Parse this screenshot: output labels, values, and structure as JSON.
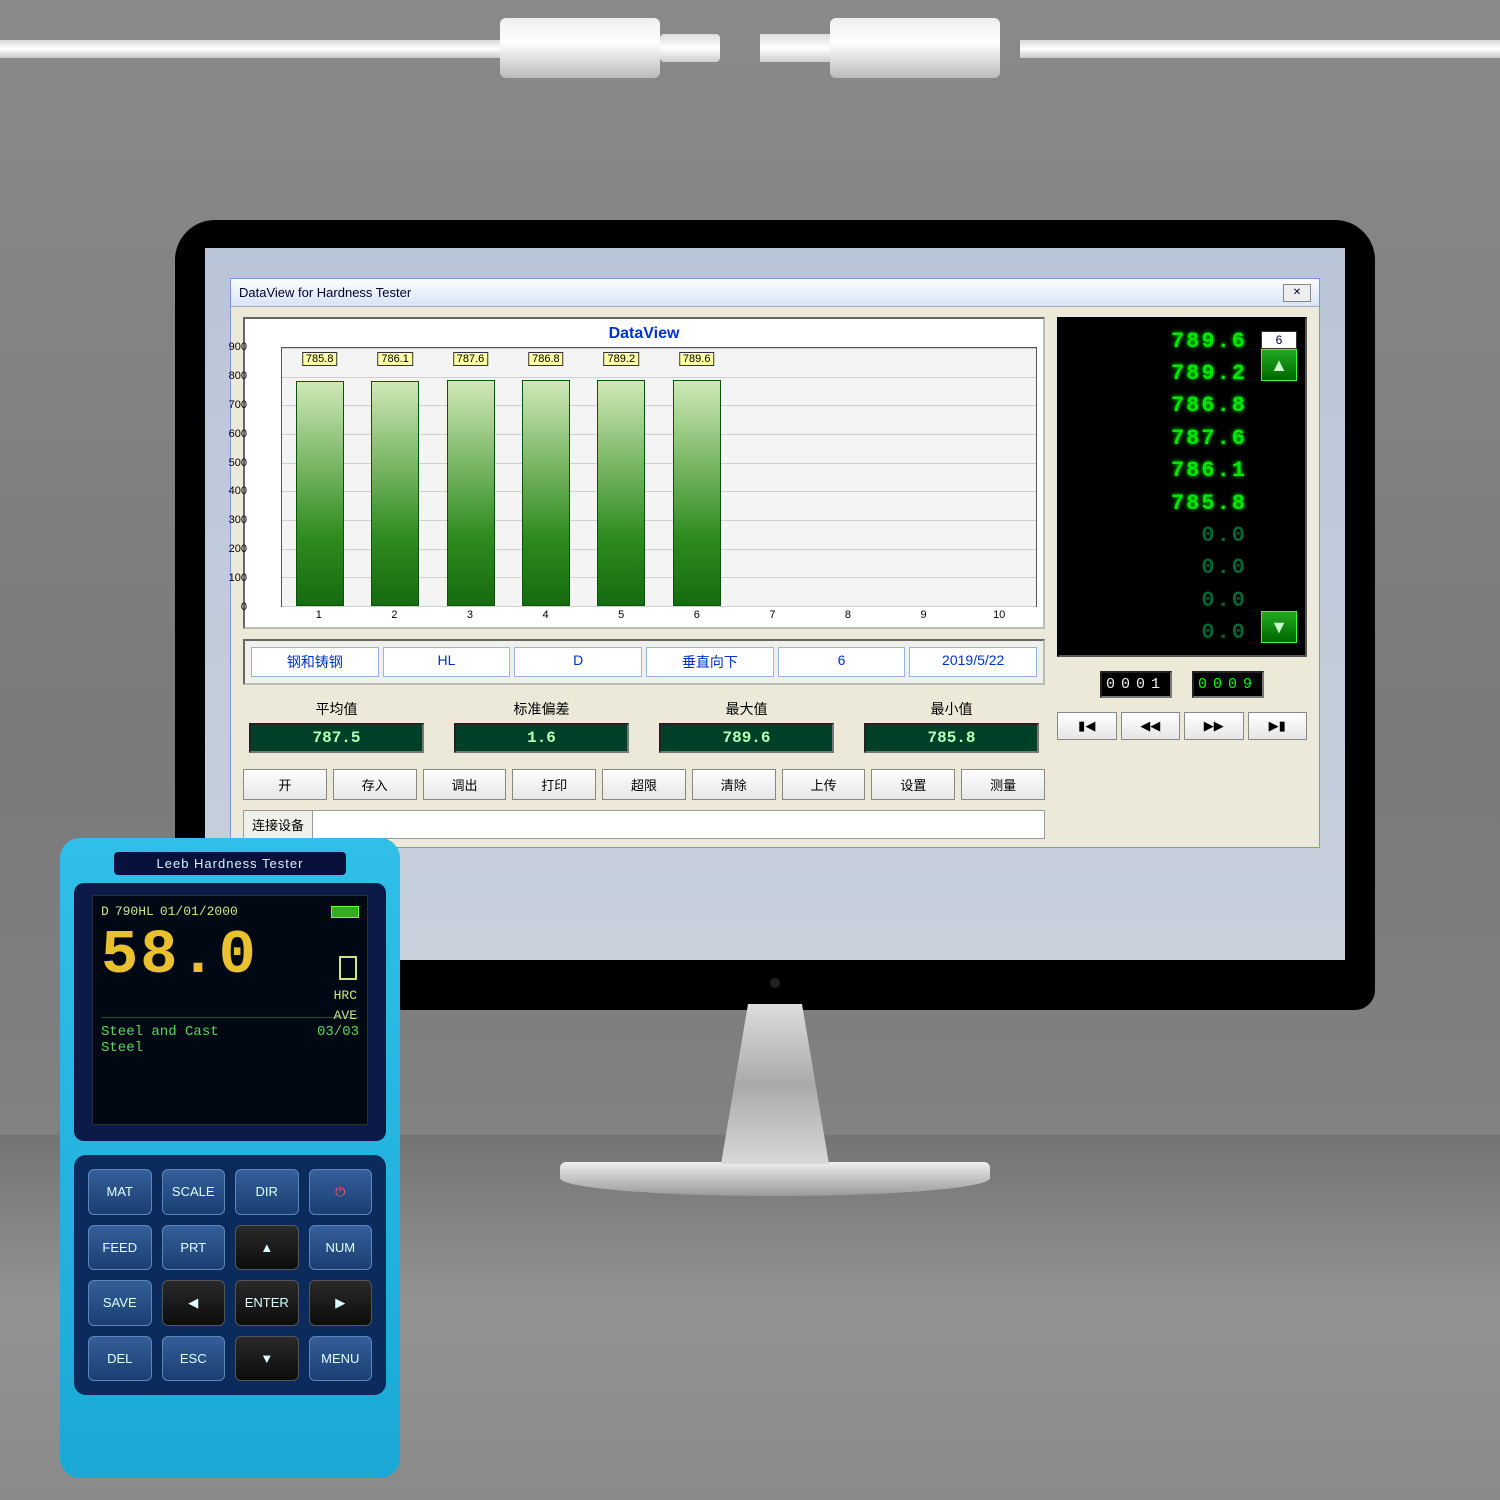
{
  "window": {
    "title": "DataView for Hardness Tester",
    "close_glyph": "✕"
  },
  "chart": {
    "type": "bar",
    "title": "DataView",
    "title_color": "#0033cc",
    "ylim": [
      0,
      900
    ],
    "yticks": [
      0,
      100,
      200,
      300,
      400,
      500,
      600,
      700,
      800,
      900
    ],
    "x_count": 10,
    "bars": [
      {
        "x": 1,
        "value": 785.8,
        "label": "785.8"
      },
      {
        "x": 2,
        "value": 786.1,
        "label": "786.1"
      },
      {
        "x": 3,
        "value": 787.6,
        "label": "787.6"
      },
      {
        "x": 4,
        "value": 786.8,
        "label": "786.8"
      },
      {
        "x": 5,
        "value": 789.2,
        "label": "789.2"
      },
      {
        "x": 6,
        "value": 789.6,
        "label": "789.6"
      }
    ],
    "bar_colors": [
      "#cfe8b7",
      "#2e8b1e"
    ],
    "background": "#f4f4f4",
    "grid_color": "#d0d0d0"
  },
  "info": [
    "钢和铸钢",
    "HL",
    "D",
    "垂直向下",
    "6",
    "2019/5/22"
  ],
  "stats": [
    {
      "label": "平均值",
      "value": "787.5"
    },
    {
      "label": "标准偏差",
      "value": "1.6"
    },
    {
      "label": "最大值",
      "value": "789.6"
    },
    {
      "label": "最小值",
      "value": "785.8"
    }
  ],
  "buttons": [
    "开",
    "存入",
    "调出",
    "打印",
    "超限",
    "清除",
    "上传",
    "设置",
    "测量"
  ],
  "status_label": "连接设备",
  "led": {
    "values": [
      "789.6",
      "789.2",
      "786.8",
      "787.6",
      "786.1",
      "785.8",
      "0.0",
      "0.0",
      "0.0",
      "0.0"
    ],
    "active_count": 6,
    "index": "6",
    "counter_left": "0001",
    "counter_right": "0009",
    "media_buttons": [
      "▮◀",
      "◀◀",
      "▶▶",
      "▶▮"
    ]
  },
  "device": {
    "name": "Leeb Hardness Tester",
    "top": {
      "mode": "D",
      "reading": "790HL",
      "date": "01/01/2000"
    },
    "main_value": "58.0",
    "side": {
      "scale": "HRC",
      "mode": "AVE"
    },
    "bottom": {
      "material": "Steel and Cast\nSteel",
      "count": "03/03"
    },
    "keys_row1": [
      "MAT",
      "SCALE",
      "DIR",
      "⏻"
    ],
    "keys_row2": [
      "FEED",
      "PRT",
      "▲",
      "NUM"
    ],
    "keys_row3": [
      "SAVE",
      "◀",
      "ENTER",
      "▶"
    ],
    "keys_row4": [
      "DEL",
      "ESC",
      "▼",
      "MENU"
    ]
  }
}
